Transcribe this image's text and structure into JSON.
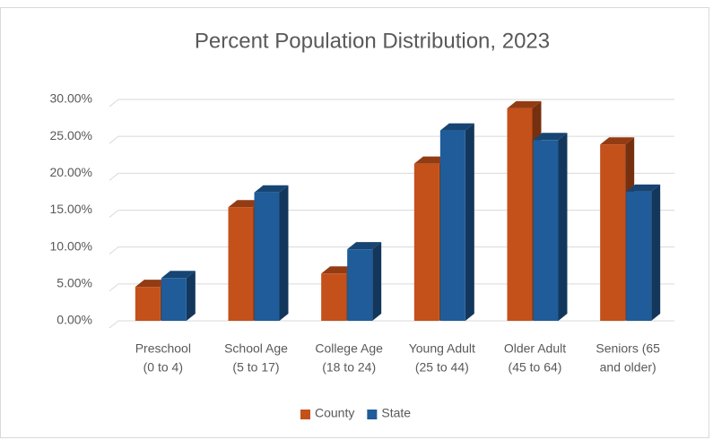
{
  "chart_data": {
    "type": "bar3d",
    "title": "Percent Population Distribution, 2023",
    "categories": [
      [
        "Preschool",
        "(0 to 4)"
      ],
      [
        "School Age",
        "(5 to 17)"
      ],
      [
        "College Age",
        "(18 to 24)"
      ],
      [
        "Young Adult",
        "(25 to 44)"
      ],
      [
        "Older Adult",
        "(45 to 64)"
      ],
      [
        "Seniors (65",
        "and older)"
      ]
    ],
    "series": [
      {
        "name": "County",
        "color": "#c4501a",
        "values": [
          4.6,
          15.4,
          6.4,
          21.3,
          28.8,
          23.9
        ]
      },
      {
        "name": "State",
        "color": "#1f5c99",
        "values": [
          5.8,
          17.4,
          9.7,
          25.8,
          24.5,
          17.5
        ]
      }
    ],
    "ylim": [
      0,
      30
    ],
    "yticks": [
      {
        "value": 0,
        "label": "0.00%"
      },
      {
        "value": 5,
        "label": "5.00%"
      },
      {
        "value": 10,
        "label": "10.00%"
      },
      {
        "value": 15,
        "label": "15.00%"
      },
      {
        "value": 20,
        "label": "20.00%"
      },
      {
        "value": 25,
        "label": "25.00%"
      },
      {
        "value": 30,
        "label": "30.00%"
      }
    ],
    "grid": true,
    "legend": "bottom"
  }
}
